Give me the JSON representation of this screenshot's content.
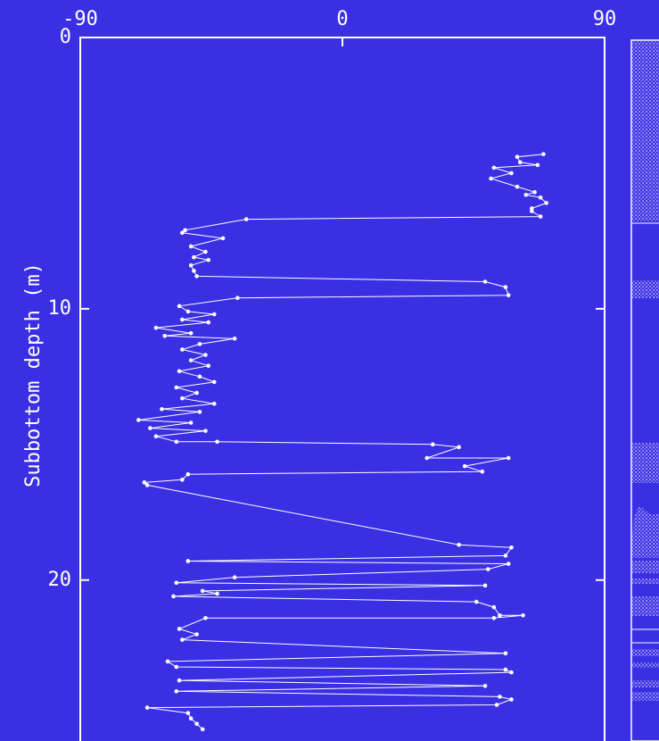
{
  "chart_data": {
    "type": "line",
    "ylabel": "Subbottom depth (m)",
    "xlim": [
      -90,
      90
    ],
    "xticks": [
      -90,
      0,
      90
    ],
    "ylim": [
      0,
      25.8
    ],
    "yticks": [
      0,
      10,
      20
    ],
    "color": "#ffffff",
    "depth": [
      4.3,
      4.4,
      4.6,
      4.7,
      4.8,
      5.0,
      5.2,
      5.5,
      5.7,
      5.8,
      5.9,
      6.1,
      6.3,
      6.4,
      6.6,
      6.7,
      7.1,
      7.2,
      7.4,
      7.7,
      7.9,
      8.1,
      8.2,
      8.4,
      8.6,
      8.8,
      9.0,
      9.2,
      9.5,
      9.6,
      9.9,
      10.1,
      10.2,
      10.4,
      10.5,
      10.7,
      10.9,
      11.0,
      11.1,
      11.3,
      11.5,
      11.7,
      11.9,
      12.1,
      12.3,
      12.5,
      12.7,
      12.9,
      13.1,
      13.3,
      13.5,
      13.7,
      13.8,
      14.1,
      14.2,
      14.4,
      14.5,
      14.7,
      14.9,
      14.9,
      15.0,
      15.1,
      15.5,
      15.5,
      15.8,
      16.0,
      16.1,
      16.3,
      16.4,
      16.5,
      18.7,
      18.8,
      19.1,
      19.3,
      19.4,
      19.6,
      19.9,
      20.1,
      20.2,
      20.4,
      20.5,
      20.6,
      20.8,
      21.0,
      21.3,
      21.3,
      21.4,
      21.4,
      21.8,
      22.0,
      22.2,
      22.7,
      23.0,
      23.2,
      23.3,
      23.4,
      23.7,
      23.9,
      24.1,
      24.3,
      24.4,
      24.6,
      24.7,
      24.9,
      25.1,
      25.3,
      25.5
    ],
    "values": [
      69,
      60,
      61,
      67,
      52,
      58,
      51,
      60,
      66,
      63,
      68,
      70,
      65,
      65,
      68,
      -33,
      -54,
      -55,
      -41,
      -52,
      -47,
      -51,
      -46,
      -52,
      -51,
      -50,
      49,
      56,
      57,
      -36,
      -56,
      -53,
      -44,
      -55,
      -46,
      -64,
      -52,
      -61,
      -37,
      -49,
      -55,
      -47,
      -52,
      -46,
      -56,
      -49,
      -44,
      -57,
      -50,
      -55,
      -44,
      -62,
      -49,
      -70,
      -52,
      -66,
      -47,
      -64,
      -57,
      -43,
      31,
      40,
      29,
      57,
      42,
      48,
      -53,
      -55,
      -68,
      -67,
      40,
      58,
      56,
      -53,
      57,
      50,
      -37,
      -57,
      49,
      -48,
      -43,
      -58,
      46,
      52,
      54,
      62,
      52,
      -47,
      -56,
      -50,
      -55,
      56,
      -60,
      -57,
      56,
      58,
      -56,
      49,
      -57,
      54,
      58,
      53,
      -67,
      -53,
      -52,
      -50,
      -48
    ]
  }
}
